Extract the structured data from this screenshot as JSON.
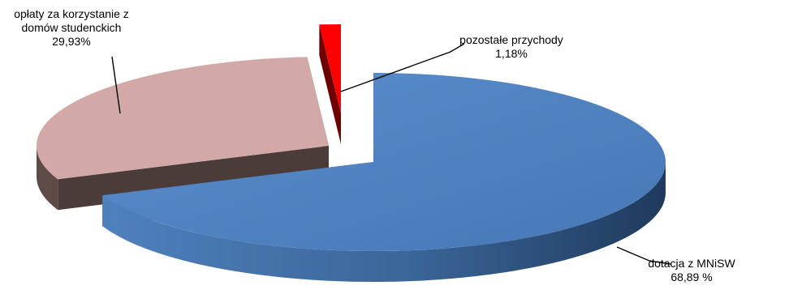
{
  "chart_data": {
    "type": "pie",
    "style": "3d-exploded",
    "title": "",
    "slices": [
      {
        "label_lines": [
          "dotacja z MNiSW",
          "68,89 %"
        ],
        "value": 68.89,
        "color": "#4F81BD"
      },
      {
        "label_lines": [
          "opłaty za korzystanie z",
          "domów studenckich",
          "29,93%"
        ],
        "value": 29.93,
        "color": "#D2A9A6"
      },
      {
        "label_lines": [
          "pozostałe przychody",
          "1,18%"
        ],
        "value": 1.18,
        "color": "#FF0000"
      }
    ]
  }
}
